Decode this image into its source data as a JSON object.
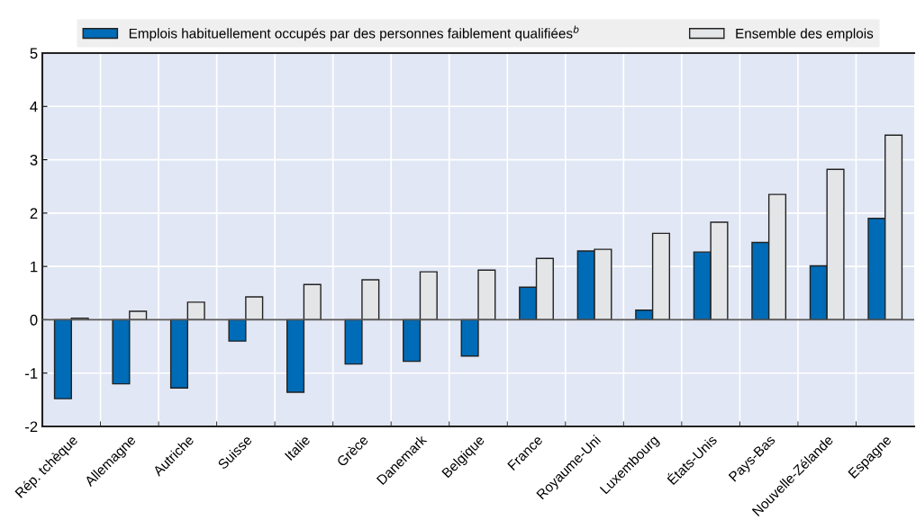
{
  "chart_data": {
    "type": "bar",
    "categories": [
      "Rép. tchèque",
      "Allemagne",
      "Autriche",
      "Suisse",
      "Italie",
      "Grèce",
      "Danemark",
      "Belgique",
      "France",
      "Royaume-Uni",
      "Luxembourg",
      "États-Unis",
      "Pays-Bas",
      "Nouvelle-Zélande",
      "Espagne"
    ],
    "series": [
      {
        "name": "Emplois habituellement occupés par des personnes faiblement qualifiées$^{b}$",
        "color": "#006bb6",
        "values": [
          -1.48,
          -1.2,
          -1.28,
          -0.4,
          -1.36,
          -0.83,
          -0.78,
          -0.68,
          0.61,
          1.29,
          0.18,
          1.27,
          1.45,
          1.01,
          1.9
        ]
      },
      {
        "name": "Ensemble des emplois",
        "color": "#e4e5e7",
        "values": [
          0.03,
          0.16,
          0.33,
          0.43,
          0.66,
          0.75,
          0.9,
          0.93,
          1.15,
          1.32,
          1.62,
          1.83,
          2.35,
          2.82,
          3.46
        ]
      }
    ],
    "ylim": [
      -2,
      5
    ],
    "yticks": [
      -2,
      -1,
      0,
      1,
      2,
      3,
      4,
      5
    ],
    "grid": true,
    "legend": "top"
  }
}
